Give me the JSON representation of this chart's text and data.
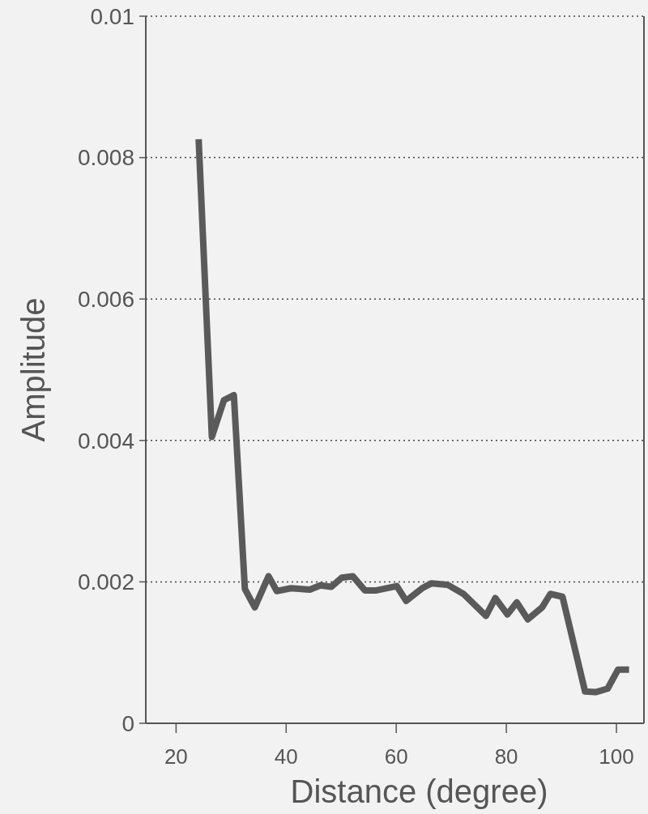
{
  "chart_data": {
    "type": "line",
    "xlabel": "Distance (degree)",
    "ylabel": "Amplitude",
    "x": [
      24.1,
      26.5,
      28.7,
      30.5,
      32.5,
      34.3,
      36.8,
      38.3,
      40.9,
      44.3,
      46.2,
      48.2,
      50.1,
      52.1,
      54.3,
      56.4,
      60.1,
      61.8,
      64.7,
      66.4,
      69.3,
      72.2,
      76.3,
      78.0,
      80.2,
      81.9,
      83.9,
      86.5,
      88.0,
      90.2,
      94.3,
      96.2,
      98.4,
      100.3,
      102.3
    ],
    "series": [
      {
        "color": "#5a5a5a",
        "values": [
          0.00826,
          0.00405,
          0.00457,
          0.00464,
          0.0019,
          0.00164,
          0.00208,
          0.00187,
          0.00191,
          0.00189,
          0.00195,
          0.00193,
          0.00206,
          0.00208,
          0.00188,
          0.00188,
          0.00194,
          0.00173,
          0.00191,
          0.00198,
          0.00196,
          0.00183,
          0.00152,
          0.00177,
          0.00154,
          0.00171,
          0.00147,
          0.00164,
          0.00183,
          0.00179,
          0.00045,
          0.00044,
          0.00049,
          0.00076,
          0.00076
        ]
      }
    ],
    "xlim": [
      14.5,
      105
    ],
    "xticks": [
      20,
      40,
      60,
      80,
      100
    ],
    "ylim": [
      0,
      0.01
    ],
    "yticks": [
      0,
      0.002,
      0.004,
      0.006,
      0.008,
      0.01
    ],
    "grid": "y",
    "line_style": "solid",
    "marker": "none"
  }
}
